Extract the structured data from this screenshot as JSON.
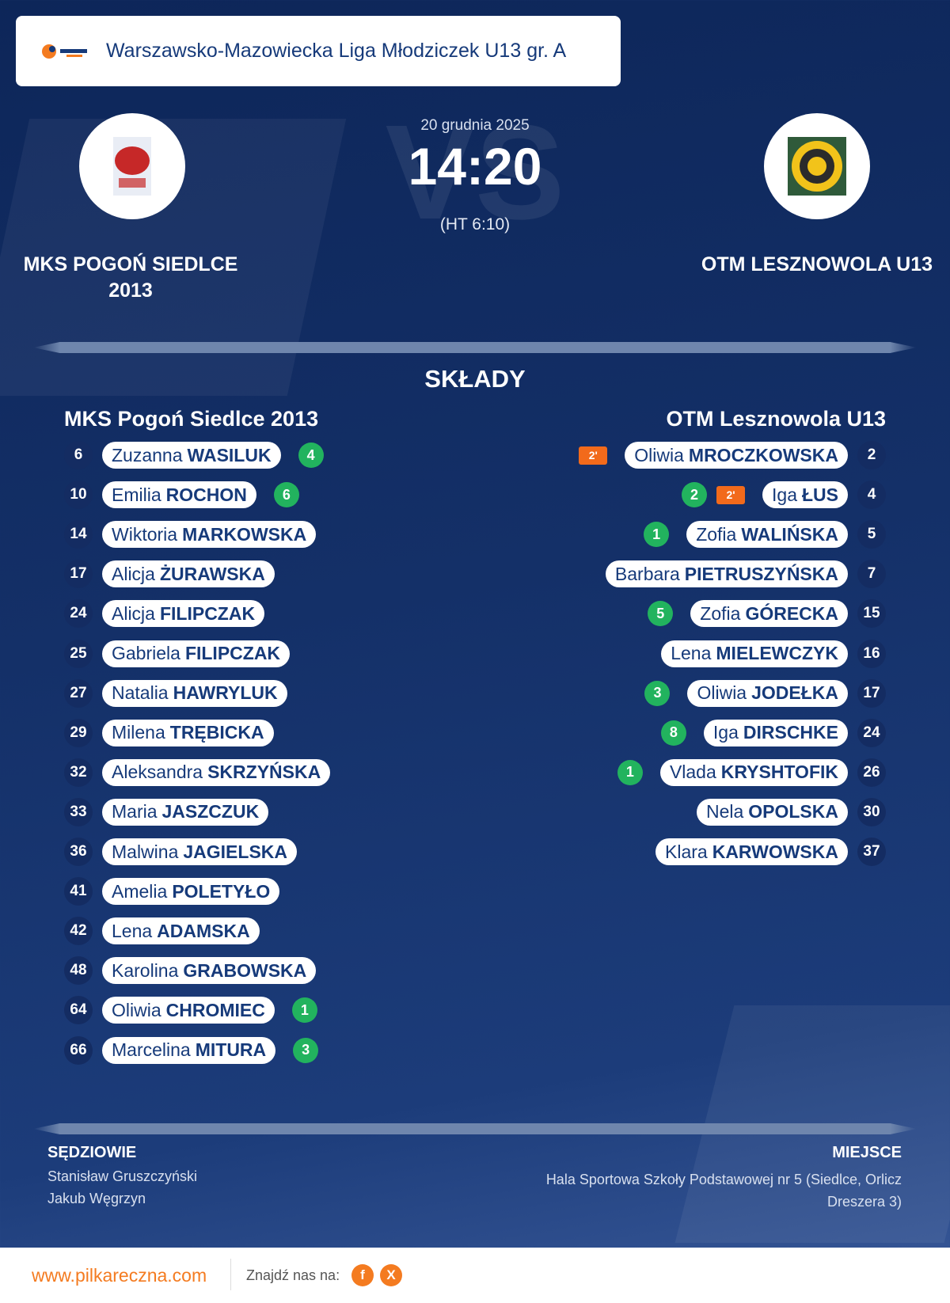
{
  "header": {
    "title": "Warszawsko-Mazowiecka Liga Młodziczek U13 gr. A"
  },
  "match": {
    "date": "20 grudnia 2025",
    "score": "14:20",
    "halftime": "(HT 6:10)",
    "vs": "VS"
  },
  "home": {
    "name": "MKS POGOŃ SIEDLCE 2013",
    "team_heading": "MKS Pogoń Siedlce 2013",
    "players": [
      {
        "number": 6,
        "first": "Zuzanna",
        "last": "WASILUK",
        "goals": 4
      },
      {
        "number": 10,
        "first": "Emilia",
        "last": "ROCHON",
        "goals": 6
      },
      {
        "number": 14,
        "first": "Wiktoria",
        "last": "MARKOWSKA"
      },
      {
        "number": 17,
        "first": "Alicja",
        "last": "ŻURAWSKA"
      },
      {
        "number": 24,
        "first": "Alicja",
        "last": "FILIPCZAK"
      },
      {
        "number": 25,
        "first": "Gabriela",
        "last": "FILIPCZAK"
      },
      {
        "number": 27,
        "first": "Natalia",
        "last": "HAWRYLUK"
      },
      {
        "number": 29,
        "first": "Milena",
        "last": "TRĘBICKA"
      },
      {
        "number": 32,
        "first": "Aleksandra",
        "last": "SKRZYŃSKA"
      },
      {
        "number": 33,
        "first": "Maria",
        "last": "JASZCZUK"
      },
      {
        "number": 36,
        "first": "Malwina",
        "last": "JAGIELSKA"
      },
      {
        "number": 41,
        "first": "Amelia",
        "last": "POLETYŁO"
      },
      {
        "number": 42,
        "first": "Lena",
        "last": "ADAMSKA"
      },
      {
        "number": 48,
        "first": "Karolina",
        "last": "GRABOWSKA"
      },
      {
        "number": 64,
        "first": "Oliwia",
        "last": "CHROMIEC",
        "goals": 1
      },
      {
        "number": 66,
        "first": "Marcelina",
        "last": "MITURA",
        "goals": 3
      }
    ]
  },
  "away": {
    "name": "OTM LESZNOWOLA U13",
    "team_heading": "OTM Lesznowola U13",
    "players": [
      {
        "number": 2,
        "first": "Oliwia",
        "last": "MROCZKOWSKA",
        "penalty": "2'"
      },
      {
        "number": 4,
        "first": "Iga",
        "last": "ŁUS",
        "goals": 2,
        "penalty": "2'"
      },
      {
        "number": 5,
        "first": "Zofia",
        "last": "WALIŃSKA",
        "goals": 1
      },
      {
        "number": 7,
        "first": "Barbara",
        "last": "PIETRUSZYŃSKA"
      },
      {
        "number": 15,
        "first": "Zofia",
        "last": "GÓRECKA",
        "goals": 5
      },
      {
        "number": 16,
        "first": "Lena",
        "last": "MIELEWCZYK"
      },
      {
        "number": 17,
        "first": "Oliwia",
        "last": "JODEŁKA",
        "goals": 3
      },
      {
        "number": 24,
        "first": "Iga",
        "last": "DIRSCHKE",
        "goals": 8
      },
      {
        "number": 26,
        "first": "Vlada",
        "last": "KRYSHTOFIK",
        "goals": 1
      },
      {
        "number": 30,
        "first": "Nela",
        "last": "OPOLSKA"
      },
      {
        "number": 37,
        "first": "Klara",
        "last": "KARWOWSKA"
      }
    ]
  },
  "lineups": {
    "title": "SKŁADY"
  },
  "referees": {
    "title": "SĘDZIOWIE",
    "names": [
      "Stanisław Gruszczyński",
      "Jakub Węgrzyn"
    ]
  },
  "venue": {
    "title": "MIEJSCE",
    "text": "Hala Sportowa Szkoły Podstawowej nr 5 (Siedlce, Orlicz Dreszera 3)"
  },
  "footer": {
    "website": "www.pilkareczna.com",
    "follow": "Znajdź nas na:",
    "icons": [
      "f",
      "X"
    ]
  }
}
